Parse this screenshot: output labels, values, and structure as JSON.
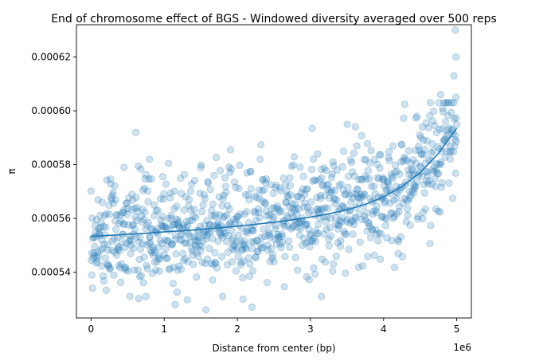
{
  "chart_data": {
    "type": "scatter",
    "title": "End of chromosome effect of BGS - Windowed diversity averaged over 500 reps",
    "xlabel": "Distance from center (bp)",
    "ylabel": "π",
    "x_offset_text": "1e6",
    "xlim": [
      -200000,
      5200000
    ],
    "ylim": [
      0.000523,
      0.000632
    ],
    "x_ticks": [
      0,
      1000000,
      2000000,
      3000000,
      4000000,
      5000000
    ],
    "x_tick_labels": [
      "0",
      "1",
      "2",
      "3",
      "4",
      "5"
    ],
    "y_ticks": [
      0.00054,
      0.00056,
      0.00058,
      0.0006,
      0.00062
    ],
    "y_tick_labels": [
      "0.00054",
      "0.00056",
      "0.00058",
      "0.00060",
      "0.00062"
    ],
    "grid": false,
    "point_color": "#1f77b4",
    "point_alpha": 0.22,
    "n_points": 1000,
    "scatter_trend": {
      "x": [
        0,
        500000,
        1000000,
        1500000,
        2000000,
        2500000,
        3000000,
        3500000,
        4000000,
        4500000,
        5000000
      ],
      "y": [
        0.000553,
        0.0005545,
        0.0005555,
        0.0005565,
        0.000558,
        0.00056,
        0.0005615,
        0.0005635,
        0.0005685,
        0.0005775,
        0.000593
      ]
    },
    "scatter_spread_sd": 1.05e-05,
    "highlighted_points": [
      {
        "x": 4980000,
        "y": 0.00063
      },
      {
        "x": 4990000,
        "y": 0.00062
      },
      {
        "x": 4960000,
        "y": 0.000613
      },
      {
        "x": 4990000,
        "y": 0.000605
      },
      {
        "x": 4780000,
        "y": 0.000606
      },
      {
        "x": 3100000,
        "y": 0.000584
      },
      {
        "x": 450000,
        "y": 0.000579
      },
      {
        "x": 800000,
        "y": 0.000582
      },
      {
        "x": 1150000,
        "y": 0.000528
      },
      {
        "x": 2200000,
        "y": 0.000527
      },
      {
        "x": 1800000,
        "y": 0.000531
      },
      {
        "x": 750000,
        "y": 0.000531
      },
      {
        "x": 3150000,
        "y": 0.000531
      },
      {
        "x": 10000,
        "y": 0.000539
      }
    ],
    "series": [
      {
        "line_color": "#1f77b4",
        "x": [
          0,
          250000,
          500000,
          750000,
          1000000,
          1250000,
          1500000,
          1750000,
          2000000,
          2250000,
          2500000,
          2750000,
          3000000,
          3250000,
          3500000,
          3750000,
          4000000,
          4250000,
          4500000,
          4750000,
          5000000
        ],
        "y": [
          0.0005533,
          0.0005537,
          0.0005541,
          0.0005545,
          0.000555,
          0.0005554,
          0.0005559,
          0.0005565,
          0.0005571,
          0.0005578,
          0.0005586,
          0.0005595,
          0.0005605,
          0.0005617,
          0.0005632,
          0.0005652,
          0.000568,
          0.0005718,
          0.000577,
          0.0005842,
          0.0005935
        ]
      }
    ]
  }
}
